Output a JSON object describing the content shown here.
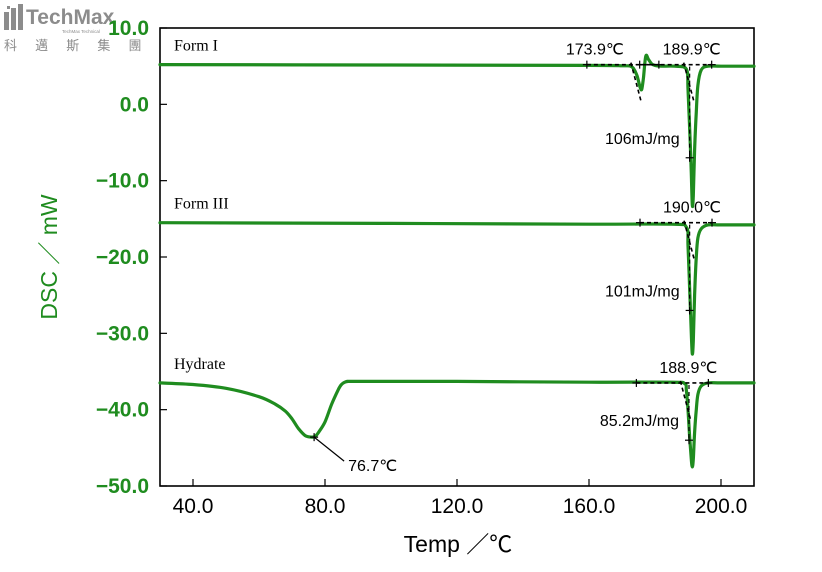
{
  "logo": {
    "brand": "TechMax",
    "subtitle": "TechMax Technical",
    "cjk": "科 邁 斯 集 團"
  },
  "colors": {
    "curve": "#1f8c1f",
    "tangent": "#000000",
    "frame": "#000000"
  },
  "chart_data": {
    "type": "line",
    "title": "",
    "xlabel": "Temp ／℃",
    "ylabel": "DSC ／ mW",
    "xlim": [
      30,
      210
    ],
    "ylim": [
      -50,
      10
    ],
    "xticks": [
      "40.0",
      "80.0",
      "120.0",
      "160.0",
      "200.0"
    ],
    "xtick_values": [
      40,
      80,
      120,
      160,
      200
    ],
    "yticks": [
      "10.0",
      "0.0",
      "−10.0",
      "−20.0",
      "−30.0",
      "−40.0",
      "−50.0"
    ],
    "ytick_values": [
      10,
      0,
      -10,
      -20,
      -30,
      -40,
      -50
    ],
    "grid": false,
    "series": [
      {
        "name": "Form I",
        "x": [
          30,
          100,
          160,
          170,
          173,
          174.5,
          175.5,
          176,
          176.5,
          177.2,
          178,
          179,
          180,
          182,
          186,
          189.5,
          190,
          190.5,
          191,
          191.3,
          191.6,
          192,
          192.5,
          193,
          194,
          196,
          200,
          210
        ],
        "y": [
          5.2,
          5.15,
          5.1,
          5.05,
          4.9,
          3.8,
          2.2,
          2.0,
          3.5,
          6.3,
          5.9,
          5.3,
          5.1,
          5.0,
          5.0,
          4.6,
          2.0,
          -3.0,
          -9.0,
          -13.2,
          -12.0,
          -6.0,
          -1.0,
          2.5,
          4.5,
          5.0,
          5.0,
          5.0
        ]
      },
      {
        "name": "Form III",
        "x": [
          30,
          100,
          160,
          185,
          189.5,
          190,
          190.5,
          191,
          191.3,
          191.6,
          192,
          192.5,
          193,
          194,
          196,
          200,
          210
        ],
        "y": [
          -15.5,
          -15.6,
          -15.7,
          -15.7,
          -16.1,
          -18.5,
          -24.0,
          -30.0,
          -32.7,
          -31.0,
          -25.0,
          -20.0,
          -17.5,
          -16.3,
          -15.8,
          -15.8,
          -15.8
        ]
      },
      {
        "name": "Hydrate",
        "x": [
          30,
          40,
          50,
          60,
          65,
          68,
          70,
          72,
          74,
          76,
          77,
          78,
          80,
          82,
          84,
          85,
          86,
          87,
          90,
          120,
          160,
          185,
          189,
          189.5,
          190,
          190.5,
          191,
          191.3,
          191.6,
          192,
          192.5,
          193,
          194,
          196,
          200,
          210
        ],
        "y": [
          -36.5,
          -36.7,
          -37.2,
          -38.3,
          -39.3,
          -40.2,
          -41.2,
          -42.5,
          -43.4,
          -43.6,
          -43.5,
          -43.0,
          -41.6,
          -39.3,
          -37.4,
          -36.7,
          -36.4,
          -36.3,
          -36.3,
          -36.3,
          -36.4,
          -36.4,
          -36.6,
          -37.5,
          -40.0,
          -43.5,
          -46.5,
          -47.5,
          -46.5,
          -43.0,
          -40.0,
          -38.0,
          -36.9,
          -36.5,
          -36.5,
          -36.5
        ]
      }
    ],
    "annotations": [
      {
        "series": "Form I",
        "text": "173.9℃",
        "x": 173.9,
        "y": 5.0,
        "kind": "onset"
      },
      {
        "series": "Form I",
        "text": "189.9℃",
        "x": 189.9,
        "y": 5.0,
        "kind": "onset"
      },
      {
        "series": "Form I",
        "text": "106mJ/mg",
        "x": 190.5,
        "y": -7.0,
        "kind": "enthalpy"
      },
      {
        "series": "Form III",
        "text": "190.0℃",
        "x": 190.0,
        "y": -15.7,
        "kind": "onset"
      },
      {
        "series": "Form III",
        "text": "101mJ/mg",
        "x": 190.5,
        "y": -27.0,
        "kind": "enthalpy"
      },
      {
        "series": "Hydrate",
        "text": "76.7℃",
        "x": 76.7,
        "y": -43.6,
        "kind": "peak"
      },
      {
        "series": "Hydrate",
        "text": "188.9℃",
        "x": 188.9,
        "y": -36.4,
        "kind": "onset"
      },
      {
        "series": "Hydrate",
        "text": "85.2mJ/mg",
        "x": 190.3,
        "y": -44.0,
        "kind": "enthalpy"
      }
    ]
  }
}
